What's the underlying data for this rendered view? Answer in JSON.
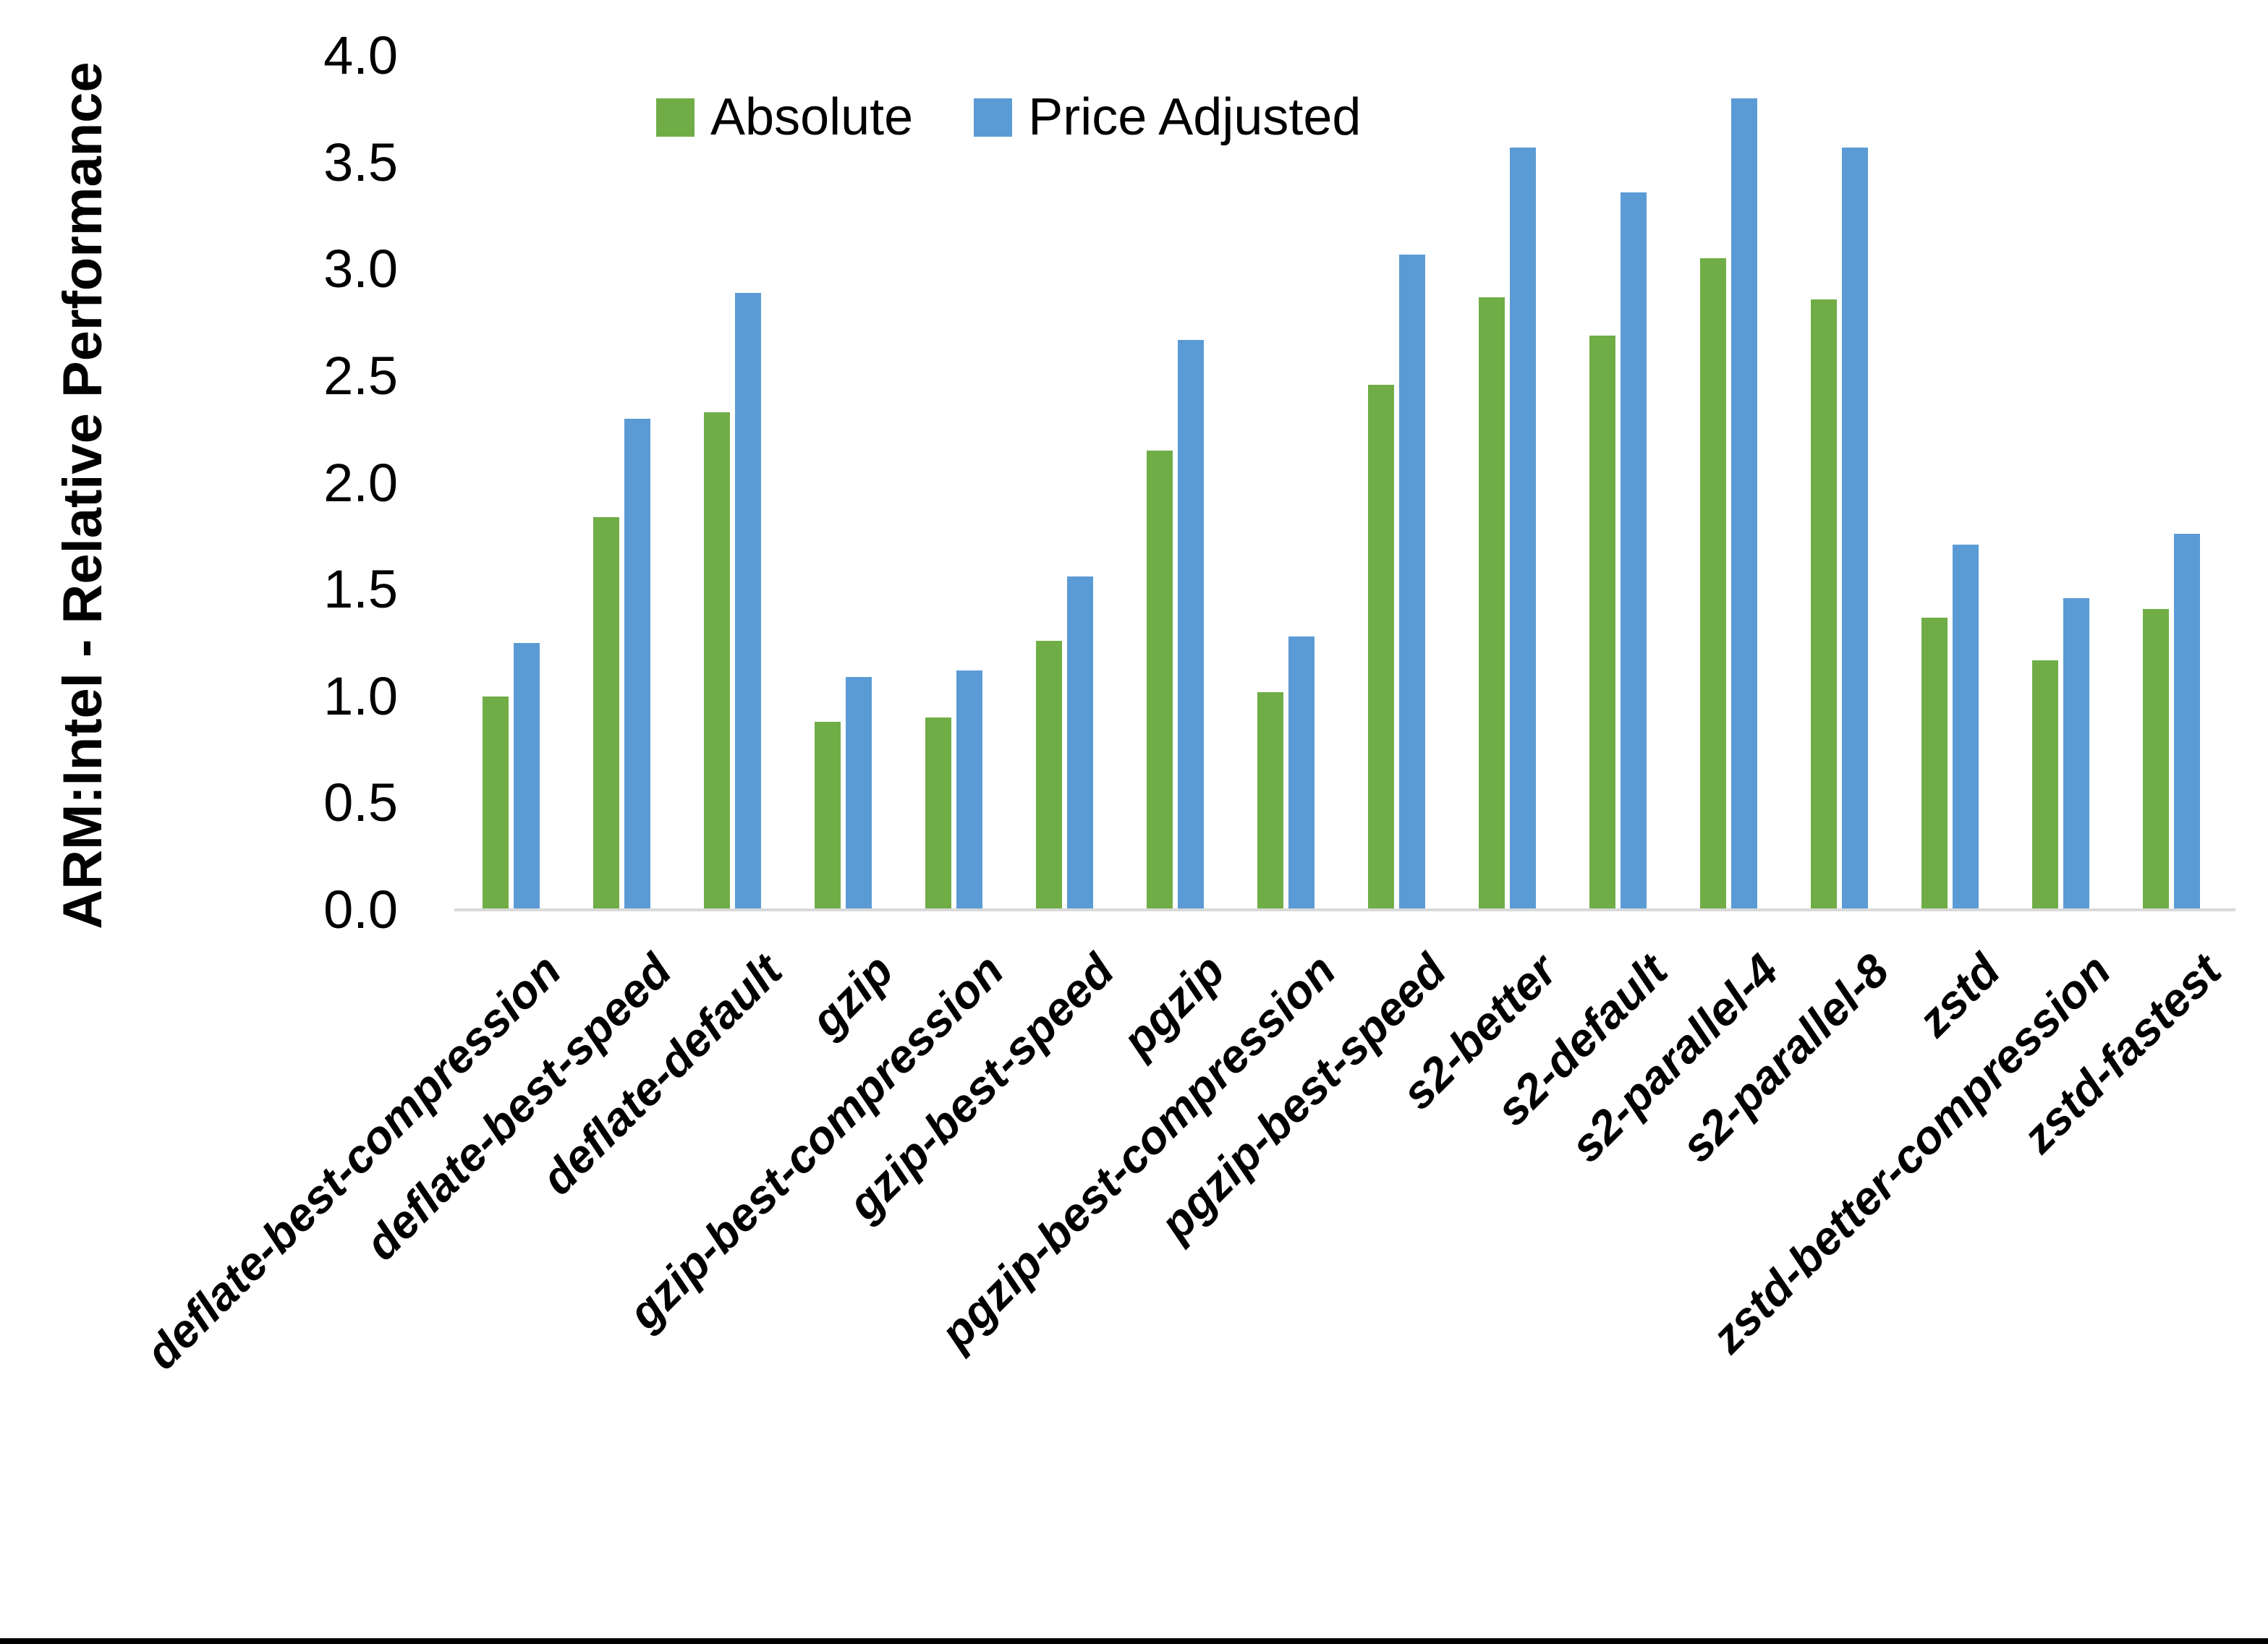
{
  "chart_data": {
    "type": "bar",
    "title": "",
    "xlabel": "",
    "ylabel": "ARM:Intel - Relative Performance",
    "ylim": [
      0.0,
      4.0
    ],
    "ytick_labels": [
      "4.0",
      "3.5",
      "3.0",
      "2.5",
      "2.0",
      "1.5",
      "1.0",
      "0.5",
      "0.0"
    ],
    "grid": false,
    "legend_position": "top-center",
    "categories": [
      "deflate-best-compression",
      "deflate-best-speed",
      "deflate-default",
      "gzip",
      "gzip-best-compression",
      "gzip-best-speed",
      "pgzip",
      "pgzip-best-compression",
      "pgzip-best-speed",
      "s2-better",
      "s2-default",
      "s2-parallel-4",
      "s2-parallel-8",
      "zstd",
      "zstd-better-compression",
      "zstd-fastest"
    ],
    "series": [
      {
        "name": "Absolute",
        "color": "#70AD47",
        "values": [
          1.0,
          1.84,
          2.33,
          0.88,
          0.9,
          1.26,
          2.15,
          1.02,
          2.46,
          2.87,
          2.69,
          3.05,
          2.86,
          1.37,
          1.17,
          1.41
        ]
      },
      {
        "name": "Price Adjusted",
        "color": "#5B9BD5",
        "values": [
          1.25,
          2.3,
          2.89,
          1.09,
          1.12,
          1.56,
          2.67,
          1.28,
          3.07,
          3.57,
          3.36,
          3.8,
          3.57,
          1.71,
          1.46,
          1.76
        ]
      }
    ]
  },
  "legend": {
    "absolute_label": "Absolute",
    "price_adjusted_label": "Price Adjusted"
  },
  "colors": {
    "absolute": "#70AD47",
    "price_adjusted": "#5B9BD5",
    "axis_line": "#D9D9D9",
    "text": "#000000",
    "bottom_strip": "#000000"
  }
}
